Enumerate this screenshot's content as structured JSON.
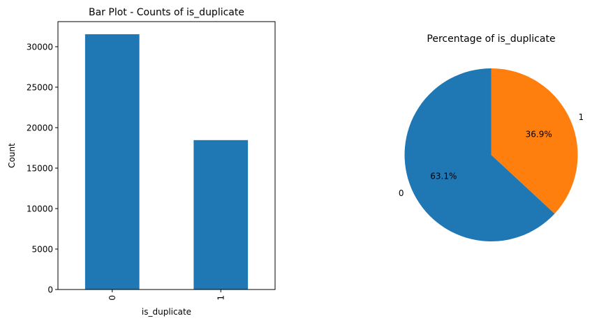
{
  "chart_data": [
    {
      "type": "bar",
      "title": "Bar Plot - Counts of is_duplicate",
      "xlabel": "is_duplicate",
      "ylabel": "Count",
      "categories": [
        "0",
        "1"
      ],
      "values": [
        31540,
        18460
      ],
      "ylim": [
        0,
        33100
      ],
      "yticks": [
        0,
        5000,
        10000,
        15000,
        20000,
        25000,
        30000
      ],
      "color": "#1f77b4",
      "grid": false,
      "legend": "none"
    },
    {
      "type": "pie",
      "title": "Percentage of is_duplicate",
      "labels": [
        "0",
        "1"
      ],
      "percent_labels": [
        "63.1%",
        "36.9%"
      ],
      "values": [
        63.1,
        36.9
      ],
      "colors": [
        "#1f77b4",
        "#ff7f0e"
      ],
      "legend": "none"
    }
  ]
}
